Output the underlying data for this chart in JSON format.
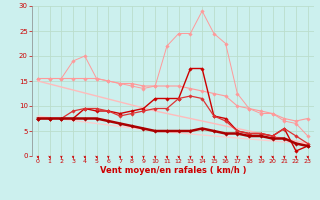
{
  "x": [
    0,
    1,
    2,
    3,
    4,
    5,
    6,
    7,
    8,
    9,
    10,
    11,
    12,
    13,
    14,
    15,
    16,
    17,
    18,
    19,
    20,
    21,
    22,
    23
  ],
  "series": [
    {
      "name": "line1_lightpink_flat",
      "color": "#FF9999",
      "linewidth": 0.8,
      "marker": "D",
      "markersize": 1.8,
      "y": [
        15.5,
        15.5,
        15.5,
        15.5,
        15.5,
        15.5,
        15.0,
        14.5,
        14.5,
        14.0,
        14.0,
        14.0,
        14.0,
        13.5,
        13.0,
        12.5,
        12.0,
        10.0,
        9.5,
        9.0,
        8.5,
        7.5,
        7.0,
        7.5
      ]
    },
    {
      "name": "line2_pink_wavy",
      "color": "#FF9999",
      "linewidth": 0.7,
      "marker": "D",
      "markersize": 1.8,
      "y": [
        15.5,
        15.5,
        15.5,
        19.0,
        20.0,
        15.5,
        15.0,
        14.5,
        14.0,
        13.5,
        14.0,
        22.0,
        24.5,
        24.5,
        29.0,
        24.5,
        22.5,
        12.5,
        9.5,
        8.5,
        8.5,
        7.0,
        6.5,
        4.0
      ]
    },
    {
      "name": "line3_diagonal_top",
      "color": "#FFBBBB",
      "linewidth": 1.0,
      "marker": null,
      "markersize": 0,
      "y": [
        15.0,
        14.4,
        13.8,
        13.2,
        12.6,
        12.0,
        11.4,
        10.8,
        10.2,
        9.6,
        9.0,
        8.5,
        8.0,
        7.5,
        7.0,
        6.5,
        6.0,
        5.5,
        5.0,
        4.5,
        4.0,
        3.5,
        3.0,
        2.5
      ]
    },
    {
      "name": "line4_diagonal_bottom",
      "color": "#FFCCCC",
      "linewidth": 0.9,
      "marker": null,
      "markersize": 0,
      "y": [
        8.0,
        7.7,
        7.4,
        7.1,
        6.8,
        6.5,
        6.2,
        5.9,
        5.6,
        5.3,
        5.0,
        4.8,
        4.6,
        4.4,
        4.2,
        4.0,
        3.8,
        3.6,
        3.4,
        3.2,
        3.0,
        2.8,
        2.6,
        2.4
      ]
    },
    {
      "name": "line5_dark_wavy",
      "color": "#CC0000",
      "linewidth": 1.0,
      "marker": "D",
      "markersize": 1.8,
      "y": [
        7.5,
        7.5,
        7.5,
        7.5,
        9.5,
        9.0,
        9.0,
        8.5,
        9.0,
        9.5,
        11.5,
        11.5,
        11.5,
        17.5,
        17.5,
        8.0,
        7.5,
        5.0,
        4.5,
        4.5,
        4.0,
        5.5,
        1.0,
        2.0
      ]
    },
    {
      "name": "line6_medium",
      "color": "#DD3333",
      "linewidth": 0.9,
      "marker": "D",
      "markersize": 1.8,
      "y": [
        7.5,
        7.5,
        7.5,
        9.0,
        9.5,
        9.5,
        9.0,
        8.0,
        8.5,
        9.0,
        9.5,
        9.5,
        11.5,
        12.0,
        11.5,
        8.0,
        7.0,
        5.0,
        4.5,
        4.5,
        4.0,
        5.5,
        4.0,
        2.5
      ]
    },
    {
      "name": "line7_thick_flat",
      "color": "#AA0000",
      "linewidth": 1.8,
      "marker": "D",
      "markersize": 1.8,
      "y": [
        7.5,
        7.5,
        7.5,
        7.5,
        7.5,
        7.5,
        7.0,
        6.5,
        6.0,
        5.5,
        5.0,
        5.0,
        5.0,
        5.0,
        5.5,
        5.0,
        4.5,
        4.5,
        4.0,
        4.0,
        3.5,
        3.5,
        2.5,
        2.0
      ]
    }
  ],
  "xlim": [
    -0.5,
    23.5
  ],
  "ylim": [
    0,
    30
  ],
  "xticks": [
    0,
    1,
    2,
    3,
    4,
    5,
    6,
    7,
    8,
    9,
    10,
    11,
    12,
    13,
    14,
    15,
    16,
    17,
    18,
    19,
    20,
    21,
    22,
    23
  ],
  "yticks": [
    0,
    5,
    10,
    15,
    20,
    25,
    30
  ],
  "xlabel": "Vent moyen/en rafales ( km/h )",
  "background_color": "#CCF0EE",
  "grid_color": "#BBDDCC",
  "tick_color": "#CC0000",
  "label_color": "#CC0000"
}
